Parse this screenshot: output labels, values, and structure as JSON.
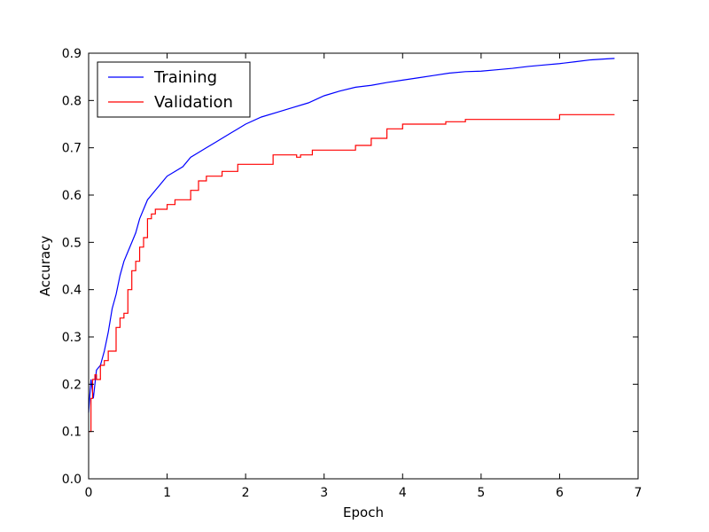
{
  "chart_data": {
    "type": "line",
    "title": "",
    "xlabel": "Epoch",
    "ylabel": "Accuracy",
    "xlim": [
      0,
      7
    ],
    "ylim": [
      0,
      0.9
    ],
    "x_ticks": [
      "0",
      "1",
      "2",
      "3",
      "4",
      "5",
      "6",
      "7"
    ],
    "y_ticks": [
      "0.0",
      "0.1",
      "0.2",
      "0.3",
      "0.4",
      "0.5",
      "0.6",
      "0.7",
      "0.8",
      "0.9"
    ],
    "grid": false,
    "legend_position": "top-left",
    "series": [
      {
        "name": "Training",
        "color": "#0000ff",
        "style": "line",
        "x": [
          0.0,
          0.03,
          0.06,
          0.1,
          0.15,
          0.2,
          0.25,
          0.3,
          0.35,
          0.4,
          0.45,
          0.5,
          0.55,
          0.6,
          0.65,
          0.7,
          0.75,
          0.8,
          0.85,
          0.9,
          0.95,
          1.0,
          1.1,
          1.2,
          1.3,
          1.4,
          1.5,
          1.6,
          1.7,
          1.8,
          1.9,
          2.0,
          2.2,
          2.4,
          2.6,
          2.8,
          3.0,
          3.2,
          3.4,
          3.6,
          3.8,
          4.0,
          4.2,
          4.4,
          4.6,
          4.8,
          5.0,
          5.2,
          5.4,
          5.6,
          5.8,
          6.0,
          6.2,
          6.4,
          6.6,
          6.7
        ],
        "y": [
          0.14,
          0.21,
          0.17,
          0.23,
          0.24,
          0.27,
          0.31,
          0.36,
          0.39,
          0.43,
          0.46,
          0.48,
          0.5,
          0.52,
          0.55,
          0.57,
          0.59,
          0.6,
          0.61,
          0.62,
          0.63,
          0.64,
          0.65,
          0.66,
          0.68,
          0.69,
          0.7,
          0.71,
          0.72,
          0.73,
          0.74,
          0.75,
          0.765,
          0.775,
          0.785,
          0.795,
          0.81,
          0.82,
          0.828,
          0.832,
          0.838,
          0.843,
          0.848,
          0.853,
          0.858,
          0.861,
          0.862,
          0.865,
          0.868,
          0.872,
          0.875,
          0.878,
          0.882,
          0.886,
          0.888,
          0.889
        ]
      },
      {
        "name": "Validation",
        "color": "#ff0000",
        "style": "step",
        "x": [
          0.0,
          0.03,
          0.05,
          0.08,
          0.1,
          0.15,
          0.2,
          0.25,
          0.3,
          0.35,
          0.4,
          0.45,
          0.5,
          0.55,
          0.6,
          0.65,
          0.7,
          0.75,
          0.8,
          0.85,
          0.9,
          1.0,
          1.1,
          1.2,
          1.3,
          1.4,
          1.5,
          1.6,
          1.7,
          1.9,
          2.0,
          2.2,
          2.35,
          2.5,
          2.65,
          2.7,
          2.85,
          3.0,
          3.2,
          3.4,
          3.6,
          3.8,
          4.0,
          4.2,
          4.4,
          4.55,
          4.8,
          5.0,
          5.5,
          6.0,
          6.5,
          6.7
        ],
        "y": [
          0.1,
          0.17,
          0.21,
          0.22,
          0.21,
          0.24,
          0.25,
          0.27,
          0.27,
          0.32,
          0.34,
          0.35,
          0.4,
          0.44,
          0.46,
          0.49,
          0.51,
          0.55,
          0.56,
          0.57,
          0.57,
          0.58,
          0.59,
          0.59,
          0.61,
          0.63,
          0.64,
          0.64,
          0.65,
          0.665,
          0.665,
          0.665,
          0.685,
          0.685,
          0.68,
          0.685,
          0.695,
          0.695,
          0.695,
          0.705,
          0.72,
          0.74,
          0.75,
          0.75,
          0.75,
          0.755,
          0.76,
          0.76,
          0.76,
          0.77,
          0.77,
          0.77
        ]
      }
    ]
  }
}
